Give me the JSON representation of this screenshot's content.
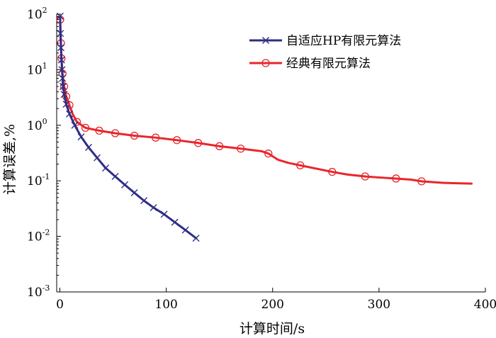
{
  "chart_data": {
    "type": "line",
    "xlabel": "计算时间/s",
    "ylabel": "计算误差,%",
    "xlim": [
      -3,
      400
    ],
    "ylim": [
      0.001,
      100
    ],
    "y_scale": "log",
    "grid": false,
    "legend_position": "top-right",
    "x_ticks": [
      {
        "value": 0,
        "label": "0"
      },
      {
        "value": 100,
        "label": "100"
      },
      {
        "value": 200,
        "label": "200"
      },
      {
        "value": 300,
        "label": "300"
      },
      {
        "value": 400,
        "label": "400"
      }
    ],
    "y_ticks": [
      {
        "value": 100,
        "base": "10",
        "exp": "2"
      },
      {
        "value": 10,
        "base": "10",
        "exp": "1"
      },
      {
        "value": 1,
        "base": "10",
        "exp": "0"
      },
      {
        "value": 0.1,
        "base": "10",
        "exp": "-1"
      },
      {
        "value": 0.01,
        "base": "10",
        "exp": "-2"
      },
      {
        "value": 0.001,
        "base": "10",
        "exp": "-3"
      }
    ],
    "series": [
      {
        "name": "自适应HP有限元算法",
        "color": "#2e2e86",
        "marker": "x",
        "x": [
          0.2,
          0.5,
          1.0,
          1.5,
          2.0,
          2.5,
          3.0,
          4.0,
          6.0,
          9.0,
          14,
          20,
          27,
          35,
          43,
          52,
          61,
          70,
          79,
          88,
          98,
          108,
          118,
          128
        ],
        "y": [
          92,
          45,
          25,
          15,
          10,
          7,
          5,
          3.6,
          2.4,
          1.6,
          1.0,
          0.62,
          0.4,
          0.26,
          0.17,
          0.12,
          0.085,
          0.061,
          0.044,
          0.033,
          0.025,
          0.018,
          0.013,
          0.0093
        ]
      },
      {
        "name": "经典有限元算法",
        "color": "#e8262b",
        "marker": "o",
        "x": [
          0.3,
          1.0,
          1.5,
          2.5,
          4.0,
          6.0,
          9.0,
          12,
          16,
          24,
          37,
          52,
          70,
          90,
          110,
          130,
          150,
          170,
          190,
          196,
          205,
          215,
          226,
          245,
          256,
          270,
          287,
          300,
          316,
          330,
          340,
          360,
          387
        ],
        "y": [
          80,
          30,
          16,
          8.5,
          5.0,
          3.3,
          2.3,
          1.6,
          1.15,
          0.9,
          0.8,
          0.72,
          0.65,
          0.6,
          0.54,
          0.48,
          0.42,
          0.38,
          0.34,
          0.31,
          0.24,
          0.21,
          0.19,
          0.16,
          0.145,
          0.13,
          0.12,
          0.115,
          0.11,
          0.105,
          0.098,
          0.092,
          0.089
        ],
        "marker_x": [
          0.3,
          1.0,
          1.5,
          2.5,
          4.0,
          6.0,
          9.0,
          16,
          24,
          37,
          52,
          70,
          90,
          110,
          130,
          150,
          170,
          196,
          226,
          256,
          287,
          316,
          340
        ],
        "marker_y": [
          80,
          30,
          16,
          8.5,
          5.0,
          3.3,
          2.3,
          1.15,
          0.9,
          0.8,
          0.72,
          0.65,
          0.6,
          0.54,
          0.48,
          0.42,
          0.38,
          0.31,
          0.19,
          0.145,
          0.12,
          0.11,
          0.098
        ]
      }
    ]
  }
}
